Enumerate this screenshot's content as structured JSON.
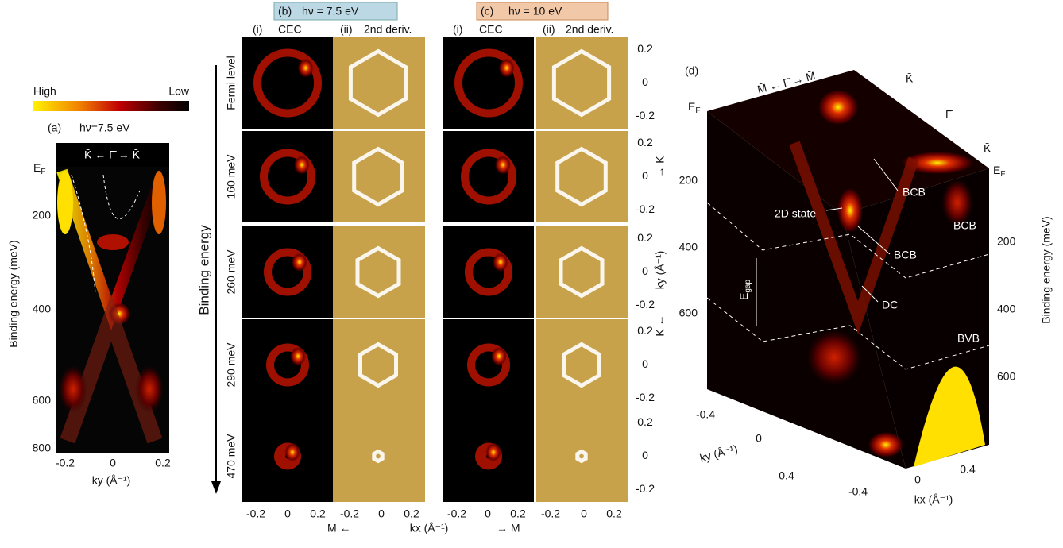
{
  "colorbar": {
    "high": "High",
    "low": "Low"
  },
  "panel_a": {
    "label": "(a)",
    "photon": "hν=7.5 eV",
    "direction": "K̄ ← Γ̄ → K̄",
    "ef": {
      "main": "E",
      "sub": "F"
    },
    "y_label": "Binding energy (meV)",
    "y_ticks": [
      "200",
      "400",
      "600",
      "800"
    ],
    "x_ticks": [
      "-0.2",
      "0",
      "0.2"
    ],
    "x_label": "ky (Å⁻¹)"
  },
  "panel_b": {
    "label": "(b)",
    "photon": "hν = 7.5 eV",
    "col_i": "(i)",
    "col_i_name": "CEC",
    "col_ii": "(ii)",
    "col_ii_name": "2nd deriv."
  },
  "panel_c": {
    "label": "(c)",
    "photon": "hν = 10 eV",
    "col_i": "(i)",
    "col_i_name": "CEC",
    "col_ii": "(ii)",
    "col_ii_name": "2nd deriv."
  },
  "rows": [
    "Fermi level",
    "160 meV",
    "260 meV",
    "290 meV",
    "470 meV"
  ],
  "binding_energy": "Binding energy",
  "right_ticks": [
    "0.2",
    "0",
    "-0.2"
  ],
  "ky_label": "ky (Å⁻¹)",
  "k_arrow_up": "→ K̄",
  "k_arrow_down": "K̄ ←",
  "bottom_ticks": [
    "-0.2",
    "0",
    "0.2"
  ],
  "m_left": "M̄ ←",
  "kx_label": "kx (Å⁻¹)",
  "m_right": "→ M̄",
  "panel_d": {
    "label": "(d)",
    "top_direction": "M̄ ← Γ̄ → M̄",
    "k_top": "K̄",
    "gamma": "Γ̄",
    "k_bottom": "K̄",
    "ef": {
      "main": "E",
      "sub": "F"
    },
    "left_ticks": [
      "200",
      "400",
      "600"
    ],
    "right_ticks": [
      "200",
      "400",
      "600"
    ],
    "y_label": "Binding energy (meV)",
    "bcb": "BCB",
    "state_2d": "2D state",
    "dc": "DC",
    "egap": {
      "main": "E",
      "sub": "gap"
    },
    "bvb": "BVB",
    "ky_label": "ky (Å⁻¹)",
    "ky_ticks": [
      "-0.4",
      "0",
      "0.4"
    ],
    "kx_label": "kx (Å⁻¹)",
    "kx_ticks": [
      "-0.4",
      "0",
      "0.4"
    ]
  }
}
